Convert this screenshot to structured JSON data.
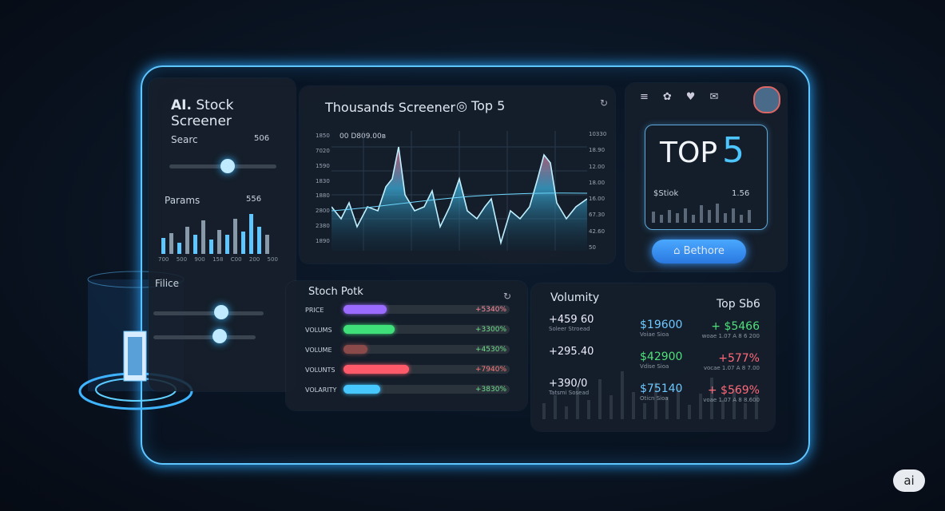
{
  "sidebar": {
    "logo": "AI.",
    "title": "Stock Screener",
    "search": {
      "label": "Searc",
      "value": "506"
    },
    "params": {
      "label": "Params",
      "value": "556",
      "axis": [
        "700",
        "500",
        "900",
        "158",
        "C00",
        "200",
        "500"
      ]
    },
    "filter": {
      "label": "Filice"
    }
  },
  "chart_panel": {
    "title": "Thousands Screener",
    "badge": "Top 5",
    "caption": "00 D809.00ʙ",
    "left_axis": [
      "1850",
      "7020",
      "1590",
      "1830",
      "1880",
      "2800",
      "2380",
      "1890"
    ],
    "right_axis": [
      "10330",
      "18.90",
      "12.00",
      "18.00",
      "16.00",
      "67.30",
      "42.60",
      "50"
    ]
  },
  "top_card": {
    "word": "TOP",
    "number": "5",
    "ticker": "$Stiok",
    "ticker_value": "1.56",
    "button": "Bethore"
  },
  "stock_panel": {
    "title": "Stoch Potk",
    "rows": [
      {
        "label": "PRICE",
        "change": "+5340%"
      },
      {
        "label": "VOLUMS",
        "change": "+3300%"
      },
      {
        "label": "VOLUME",
        "change": "+4530%"
      },
      {
        "label": "VOLUNTS",
        "change": "+7940%"
      },
      {
        "label": "VOLARITY",
        "change": "+3830%"
      }
    ]
  },
  "volume_panel": {
    "title": "Volumity",
    "subtitle": "Top Sb6",
    "left": [
      {
        "value": "+459 60",
        "note": "Soleer Stroead"
      },
      {
        "value": "+295.40",
        "note": ""
      },
      {
        "value": "+390/0",
        "note": "Tatsmi Sosead"
      }
    ],
    "middle": [
      {
        "value": "$19600",
        "note": "Voiae Sioa"
      },
      {
        "value": "$42900",
        "note": "Vdise Sioa"
      },
      {
        "value": "$75140",
        "note": "Oticn Sioa"
      }
    ],
    "right": [
      {
        "value": "+ $5466",
        "note": "woae 1.07 A 8 6 200"
      },
      {
        "value": "+577%",
        "note": "vocae 1.07 A 8 7.00"
      },
      {
        "value": "+ $569%",
        "note": "voae 1.07 A 8 8.600"
      }
    ]
  },
  "badge": "ai"
}
